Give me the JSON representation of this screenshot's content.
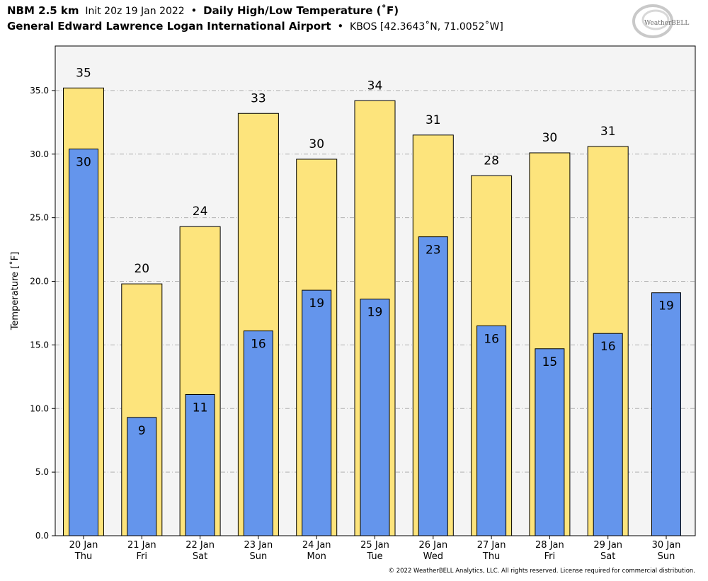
{
  "header": {
    "line1": {
      "model": "NBM 2.5 km",
      "init": "Init 20z 19 Jan 2022",
      "sep": "•",
      "product": "Daily High/Low Temperature (˚F)"
    },
    "line2": {
      "location": "General Edward Lawrence Logan International Airport",
      "sep": "•",
      "station": "KBOS [42.3643˚N, 71.0052˚W]"
    }
  },
  "logo": {
    "text": "WeatherBELL"
  },
  "footer": {
    "copyright": "© 2022 WeatherBELL Analytics, LLC. All rights reserved. License required for commercial distribution."
  },
  "colors": {
    "high": "#fde47c",
    "low": "#6495ec",
    "plot_bg": "#f4f4f4",
    "grid": "#b0b0b0"
  },
  "chart_data": {
    "type": "bar",
    "title": "Daily High/Low Temperature (˚F)",
    "ylabel": "Temperature [˚F]",
    "xlabel": "",
    "ylim": [
      0,
      38.5
    ],
    "yticks": [
      "0.0",
      "5.0",
      "10.0",
      "15.0",
      "20.0",
      "25.0",
      "30.0",
      "35.0"
    ],
    "grid": "horizontal",
    "categories": [
      {
        "date": "20 Jan",
        "day": "Thu"
      },
      {
        "date": "21 Jan",
        "day": "Fri"
      },
      {
        "date": "22 Jan",
        "day": "Sat"
      },
      {
        "date": "23 Jan",
        "day": "Sun"
      },
      {
        "date": "24 Jan",
        "day": "Mon"
      },
      {
        "date": "25 Jan",
        "day": "Tue"
      },
      {
        "date": "26 Jan",
        "day": "Wed"
      },
      {
        "date": "27 Jan",
        "day": "Thu"
      },
      {
        "date": "28 Jan",
        "day": "Fri"
      },
      {
        "date": "29 Jan",
        "day": "Sat"
      },
      {
        "date": "30 Jan",
        "day": "Sun"
      }
    ],
    "series": [
      {
        "key": "high",
        "values": [
          35.2,
          19.8,
          24.3,
          33.2,
          29.6,
          34.2,
          31.5,
          28.3,
          30.1,
          30.6,
          null
        ],
        "labels": [
          "35",
          "20",
          "24",
          "33",
          "30",
          "34",
          "31",
          "28",
          "30",
          "31",
          ""
        ]
      },
      {
        "key": "low",
        "values": [
          30.4,
          9.3,
          11.1,
          16.1,
          19.3,
          18.6,
          23.5,
          16.5,
          14.7,
          15.9,
          19.1
        ],
        "labels": [
          "30",
          "9",
          "11",
          "16",
          "19",
          "19",
          "23",
          "16",
          "15",
          "16",
          "19"
        ]
      }
    ]
  }
}
